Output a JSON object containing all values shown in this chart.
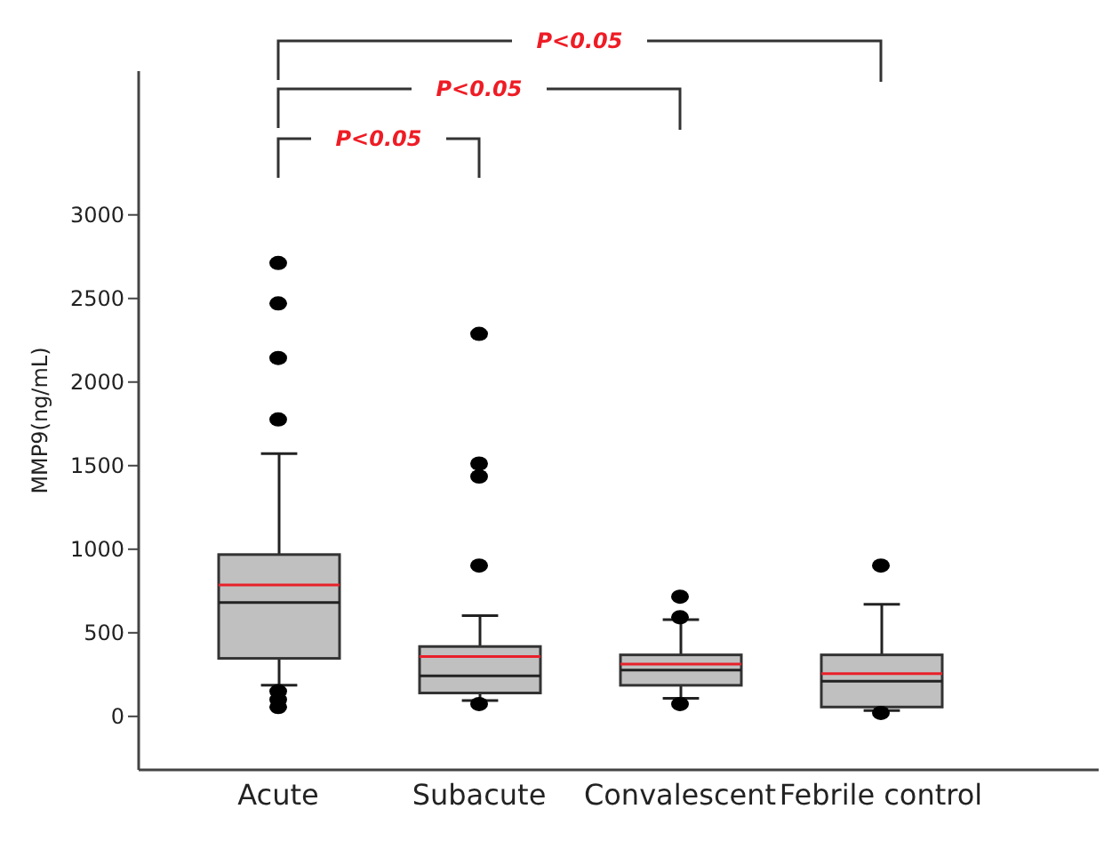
{
  "chart_data": {
    "type": "box",
    "ylabel": "MMP9(ng/mL)",
    "categories": [
      "Acute",
      "Subacute",
      "Convalescent",
      "Febrile  control"
    ],
    "series": [
      {
        "color": "#c0c0c0",
        "boxes": [
          {
            "low": 186,
            "q1": 347,
            "median": 681,
            "q3": 968,
            "high": 1572,
            "mean": 786,
            "outliers": [
              2712,
              2470,
              2144,
              1776,
              150,
              100,
              56
            ]
          },
          {
            "low": 95,
            "q1": 140,
            "median": 242,
            "q3": 418,
            "high": 603,
            "mean": 358,
            "outliers": [
              2288,
              1512,
              1435,
              902,
              74
            ]
          },
          {
            "low": 108,
            "q1": 186,
            "median": 277,
            "q3": 368,
            "high": 579,
            "mean": 313,
            "outliers": [
              716,
              593,
              74
            ]
          },
          {
            "low": 35,
            "q1": 56,
            "median": 211,
            "q3": 368,
            "high": 670,
            "mean": 256,
            "outliers": [
              902,
              21
            ]
          }
        ]
      }
    ],
    "ylim": [
      -320,
      3860
    ],
    "yticks": [
      0,
      500,
      1000,
      1500,
      2000,
      2500,
      3000
    ],
    "annotations": [
      "P<0.05",
      "P<0.05",
      "P<0.05"
    ]
  }
}
